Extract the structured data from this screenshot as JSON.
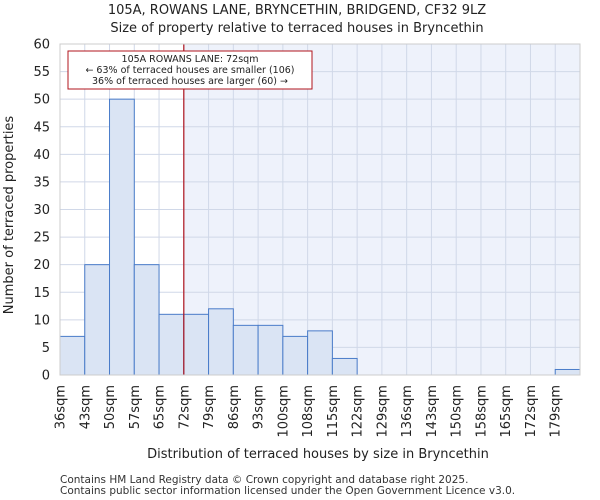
{
  "chart_data": {
    "type": "bar",
    "title": "105A, ROWANS LANE, BRYNCETHIN, BRIDGEND, CF32 9LZ",
    "subtitle": "Size of property relative to terraced houses in Bryncethin",
    "xlabel": "Distribution of terraced houses by size in Bryncethin",
    "ylabel": "Number of terraced properties",
    "categories": [
      "36sqm",
      "43sqm",
      "50sqm",
      "57sqm",
      "65sqm",
      "72sqm",
      "79sqm",
      "86sqm",
      "93sqm",
      "100sqm",
      "108sqm",
      "115sqm",
      "122sqm",
      "129sqm",
      "136sqm",
      "143sqm",
      "150sqm",
      "158sqm",
      "165sqm",
      "172sqm",
      "179sqm"
    ],
    "values": [
      7,
      20,
      50,
      20,
      11,
      11,
      12,
      9,
      9,
      7,
      8,
      3,
      0,
      0,
      0,
      0,
      0,
      0,
      0,
      0,
      1
    ],
    "ylim": [
      0,
      60
    ],
    "yticks": [
      0,
      5,
      10,
      15,
      20,
      25,
      30,
      35,
      40,
      45,
      50,
      55,
      60
    ],
    "grid": true,
    "marker": {
      "category": "72sqm",
      "color": "#b0141e",
      "annotation": [
        "105A ROWANS LANE: 72sqm",
        "← 63% of terraced houses are smaller (106)",
        "36% of terraced houses are larger (60) →"
      ]
    },
    "colors": {
      "bar_fill": "#dae4f4",
      "bar_stroke": "#4a7cc9",
      "highlight_background": "#eef2fb",
      "grid": "#d0d8e8"
    }
  },
  "footer": {
    "line1": "Contains HM Land Registry data © Crown copyright and database right 2025.",
    "line2": "Contains public sector information licensed under the Open Government Licence v3.0."
  }
}
